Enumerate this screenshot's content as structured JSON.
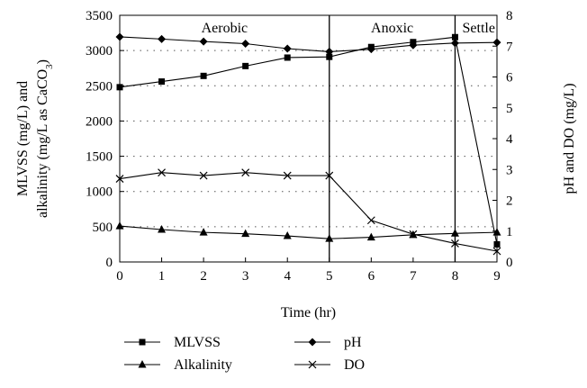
{
  "chart_data": {
    "type": "line",
    "xlabel": "Time (hr)",
    "ylabel_left_line1": "MLVSS (mg/L) and",
    "ylabel_left_line2": "alkalinity (mg/L as CaCO",
    "ylabel_left_sub": "3",
    "ylabel_left_close": ")",
    "ylabel_right": "pH and DO (mg/L)",
    "xlim": [
      0,
      9
    ],
    "ylim_left": [
      0,
      3500
    ],
    "ylim_right": [
      0,
      8
    ],
    "x_ticks": [
      "0",
      "1",
      "2",
      "3",
      "4",
      "5",
      "6",
      "7",
      "8",
      "9"
    ],
    "y_left_ticks": [
      "0",
      "500",
      "1000",
      "1500",
      "2000",
      "2500",
      "3000",
      "3500"
    ],
    "y_right_ticks": [
      "0",
      "1",
      "2",
      "3",
      "4",
      "5",
      "6",
      "7",
      "8"
    ],
    "grid": "dotted horizontal",
    "legend_position": "bottom",
    "phases": [
      {
        "label": "Aerobic",
        "start": 0,
        "end": 5
      },
      {
        "label": "Anoxic",
        "start": 5,
        "end": 8
      },
      {
        "label": "Settle",
        "start": 8,
        "end": 9
      }
    ],
    "series": [
      {
        "name": "MLVSS",
        "axis": "left",
        "marker": "square",
        "x": [
          0,
          1,
          2,
          3,
          4,
          5,
          6,
          7,
          8,
          9
        ],
        "y": [
          2480,
          2560,
          2640,
          2780,
          2900,
          2910,
          3050,
          3120,
          3190,
          250
        ]
      },
      {
        "name": "pH",
        "axis": "right",
        "marker": "diamond",
        "x": [
          0,
          1,
          2,
          3,
          4,
          5,
          6,
          7,
          8,
          9
        ],
        "y": [
          7.3,
          7.23,
          7.15,
          7.08,
          6.92,
          6.82,
          6.9,
          7.03,
          7.1,
          7.12
        ]
      },
      {
        "name": "Alkalinity",
        "axis": "left",
        "marker": "triangle",
        "x": [
          0,
          1,
          2,
          3,
          4,
          5,
          6,
          7,
          8,
          9
        ],
        "y": [
          510,
          460,
          420,
          400,
          370,
          330,
          350,
          385,
          405,
          420
        ]
      },
      {
        "name": "DO",
        "axis": "right",
        "marker": "x",
        "x": [
          0,
          1,
          2,
          3,
          4,
          5,
          6,
          7,
          8,
          9
        ],
        "y": [
          2.7,
          2.9,
          2.8,
          2.9,
          2.8,
          2.8,
          1.35,
          0.9,
          0.6,
          0.35
        ]
      }
    ]
  }
}
